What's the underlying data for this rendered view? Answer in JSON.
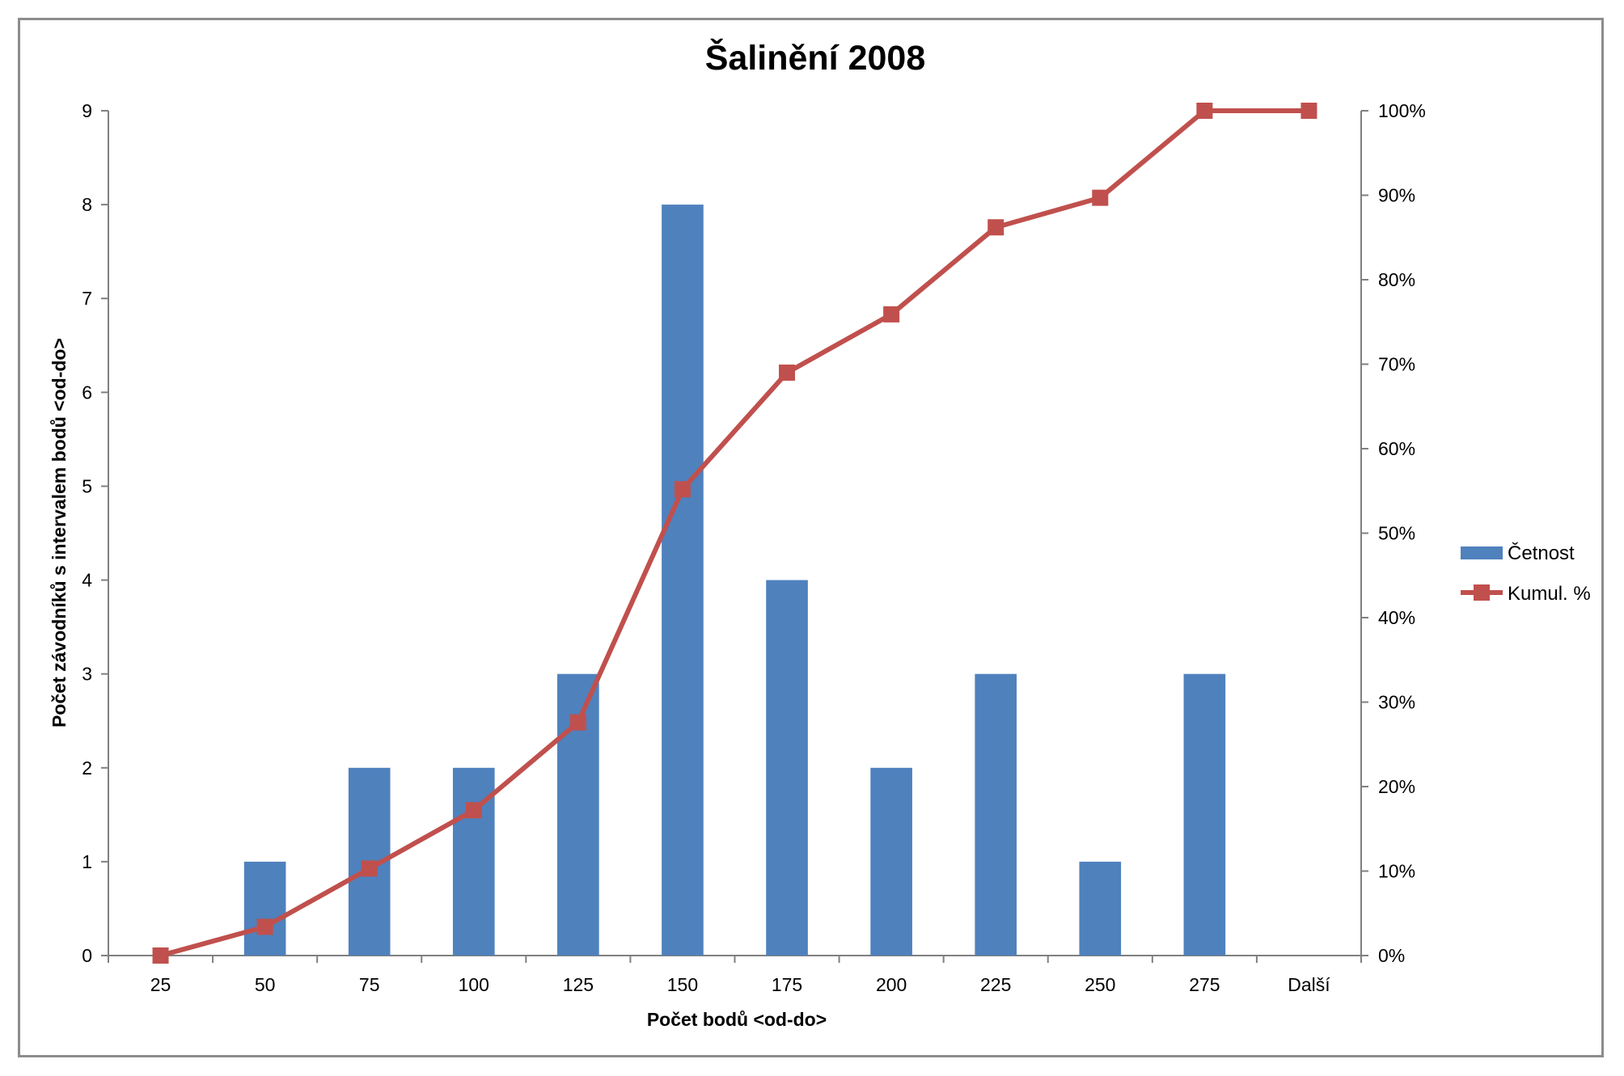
{
  "chart_data": {
    "type": "bar",
    "title": "Šalinění 2008",
    "xlabel": "Počet bodů <od-do>",
    "ylabel": "Počet závodníků s intervalem bodů <od-do>",
    "categories": [
      "25",
      "50",
      "75",
      "100",
      "125",
      "150",
      "175",
      "200",
      "225",
      "250",
      "275",
      "Další"
    ],
    "ylim": [
      0,
      9
    ],
    "y_ticks": [
      "0",
      "1",
      "2",
      "3",
      "4",
      "5",
      "6",
      "7",
      "8",
      "9"
    ],
    "y2lim": [
      0,
      100
    ],
    "y2_ticks": [
      "0%",
      "10%",
      "20%",
      "30%",
      "40%",
      "50%",
      "60%",
      "70%",
      "80%",
      "90%",
      "100%"
    ],
    "grid": false,
    "legend_position": "right",
    "series": [
      {
        "name": "Četnost",
        "type": "bar",
        "axis": "left",
        "color": "#4f81bd",
        "values": [
          0,
          1,
          2,
          2,
          3,
          8,
          4,
          2,
          3,
          1,
          3,
          0
        ]
      },
      {
        "name": "Kumul. %",
        "type": "line",
        "axis": "right",
        "color": "#c0504d",
        "marker": "square",
        "values": [
          0,
          3.4,
          10.3,
          17.2,
          27.6,
          55.2,
          69.0,
          75.9,
          86.2,
          89.7,
          100,
          100
        ]
      }
    ]
  }
}
